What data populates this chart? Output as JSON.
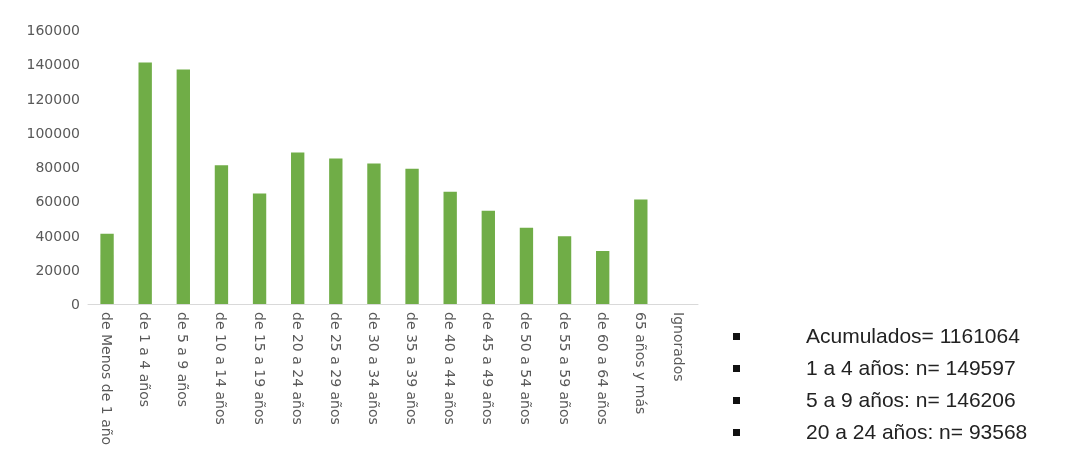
{
  "chart_data": {
    "type": "bar",
    "categories": [
      "de Menos de 1 año",
      "de 1 a 4 años",
      "de 5 a 9 años",
      "de 10 a 14 años",
      "de 15 a 19 años",
      "de 20 a 24 años",
      "de 25 a 29 años",
      "de 30 a 34 años",
      "de 35 a 39 años",
      "de 40 a 44 años",
      "de 45 a 49 años",
      "de 50 a 54 años",
      "de 55 a 59 años",
      "de 60 a 64 años",
      "65 años y más",
      "Ignorados"
    ],
    "values": [
      41000,
      141000,
      137000,
      81000,
      64500,
      88500,
      85000,
      82000,
      79000,
      65500,
      54500,
      44500,
      39500,
      31000,
      61000,
      null
    ],
    "color": "#70ad47",
    "ylim": [
      0,
      160000
    ],
    "yticks": [
      0,
      20000,
      40000,
      60000,
      80000,
      100000,
      120000,
      140000,
      160000
    ],
    "grid": false,
    "annotations": [
      "Acumulados= 1161064",
      "1 a 4 años: n= 149597",
      "5 a 9 años: n= 146206",
      "20 a 24 años: n= 93568"
    ]
  }
}
